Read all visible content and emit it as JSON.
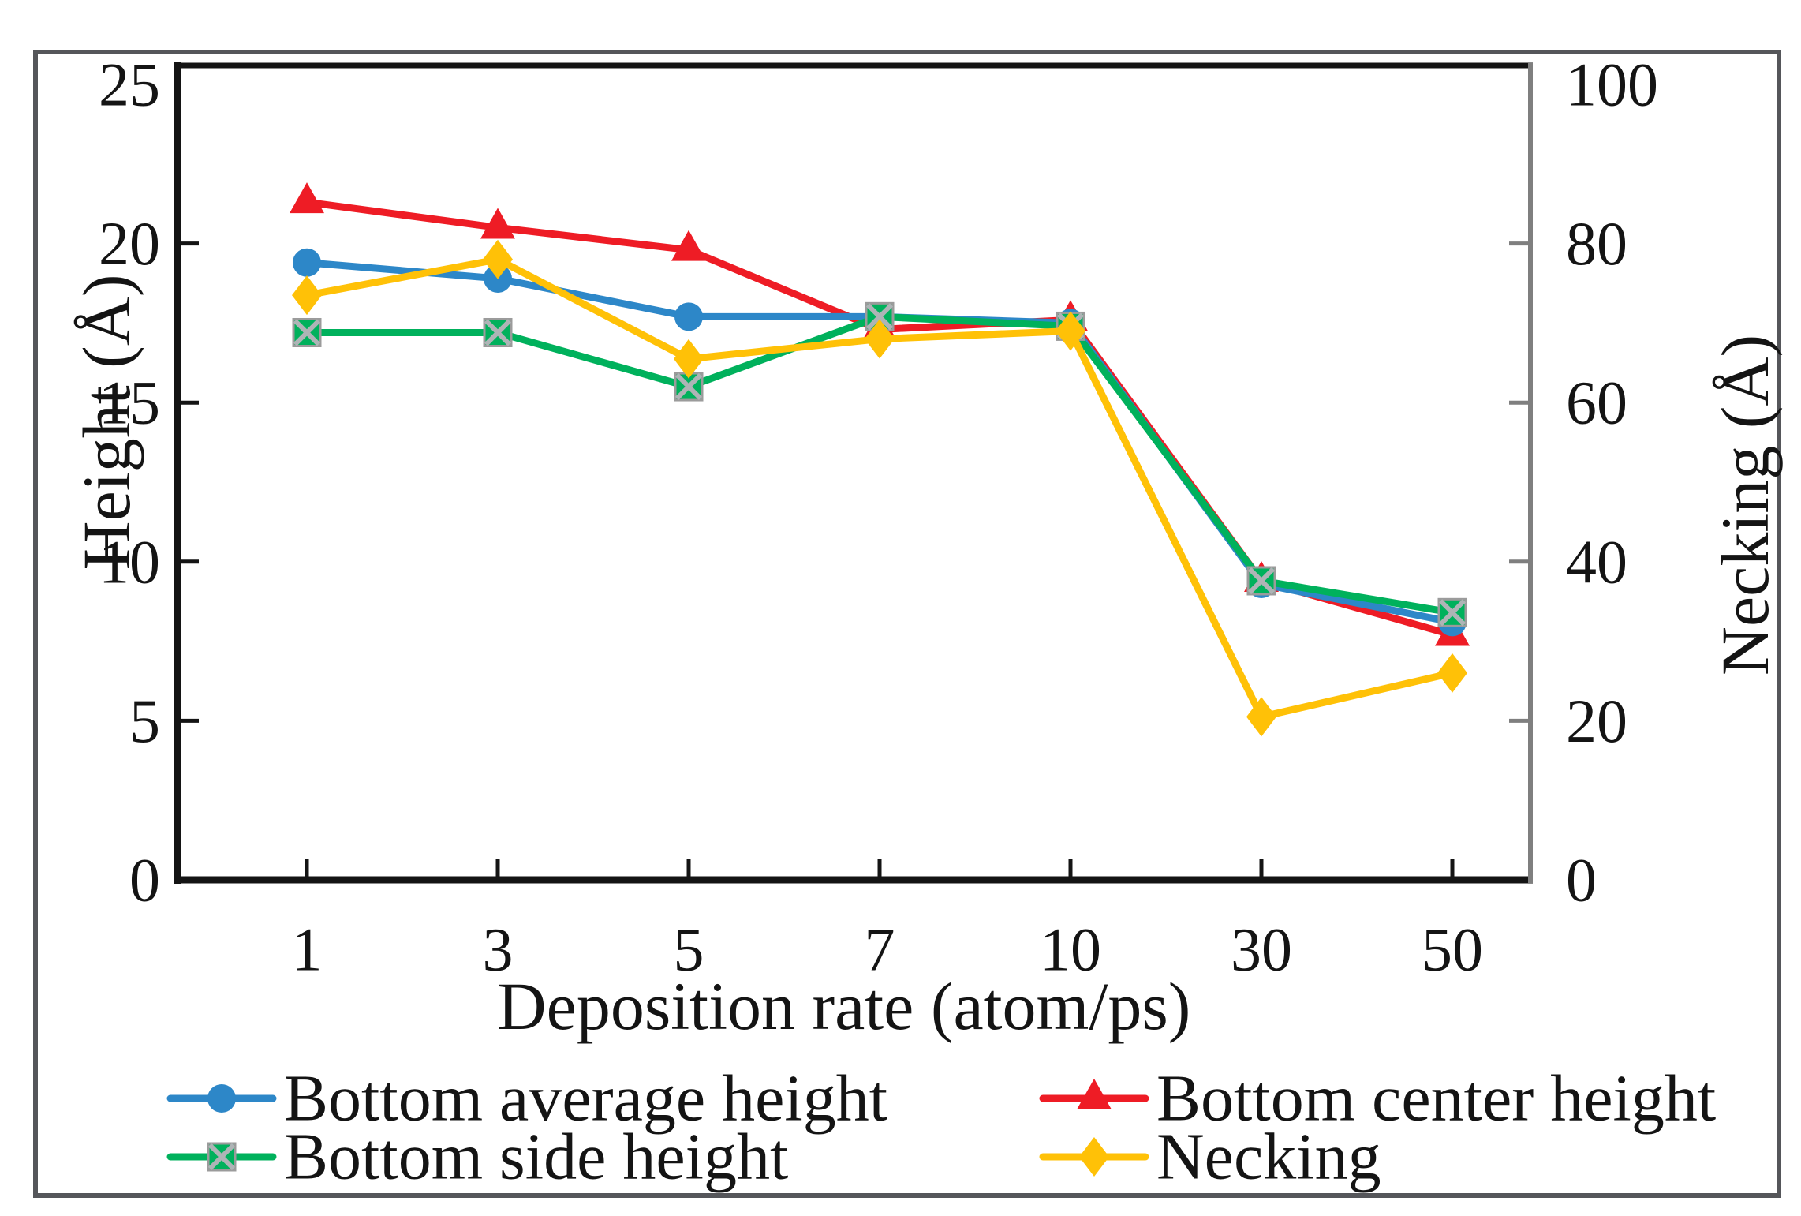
{
  "figure": {
    "background": "#ffffff",
    "border_color": "#55565a",
    "axis_color": "#141414",
    "right_axis_color": "#7f7f7f"
  },
  "chart_data": {
    "type": "line",
    "x_categories": [
      "1",
      "3",
      "5",
      "7",
      "10",
      "30",
      "50"
    ],
    "xlabel": "Deposition rate (atom/ps)",
    "ylabel_left": "Height (Å)",
    "ylabel_right": "Necking (Å)",
    "y_left_axis": {
      "min": 0,
      "max": 25,
      "ticks": [
        0,
        5,
        10,
        15,
        20,
        25
      ]
    },
    "y_right_axis": {
      "min": 0,
      "max": 100,
      "ticks": [
        0,
        20,
        40,
        60,
        80,
        100
      ]
    },
    "grid": false,
    "legend_position": "bottom",
    "series": [
      {
        "name": "Bottom average height",
        "axis": "left",
        "color": "#2d87c8",
        "marker": "circle",
        "values": [
          19.4,
          18.9,
          17.7,
          17.7,
          17.5,
          9.3,
          8.1
        ]
      },
      {
        "name": "Bottom center height",
        "axis": "left",
        "color": "#ee1c25",
        "marker": "triangle",
        "values": [
          21.3,
          20.5,
          19.8,
          17.3,
          17.6,
          9.4,
          7.7
        ]
      },
      {
        "name": "Bottom side height",
        "axis": "left",
        "color": "#00b15c",
        "marker": "square-x",
        "values": [
          17.2,
          17.2,
          15.5,
          17.7,
          17.4,
          9.4,
          8.4
        ]
      },
      {
        "name": "Necking",
        "axis": "right",
        "color": "#ffc107",
        "marker": "diamond",
        "values": [
          73.5,
          78,
          65.5,
          68,
          69,
          20.5,
          26
        ]
      }
    ]
  }
}
